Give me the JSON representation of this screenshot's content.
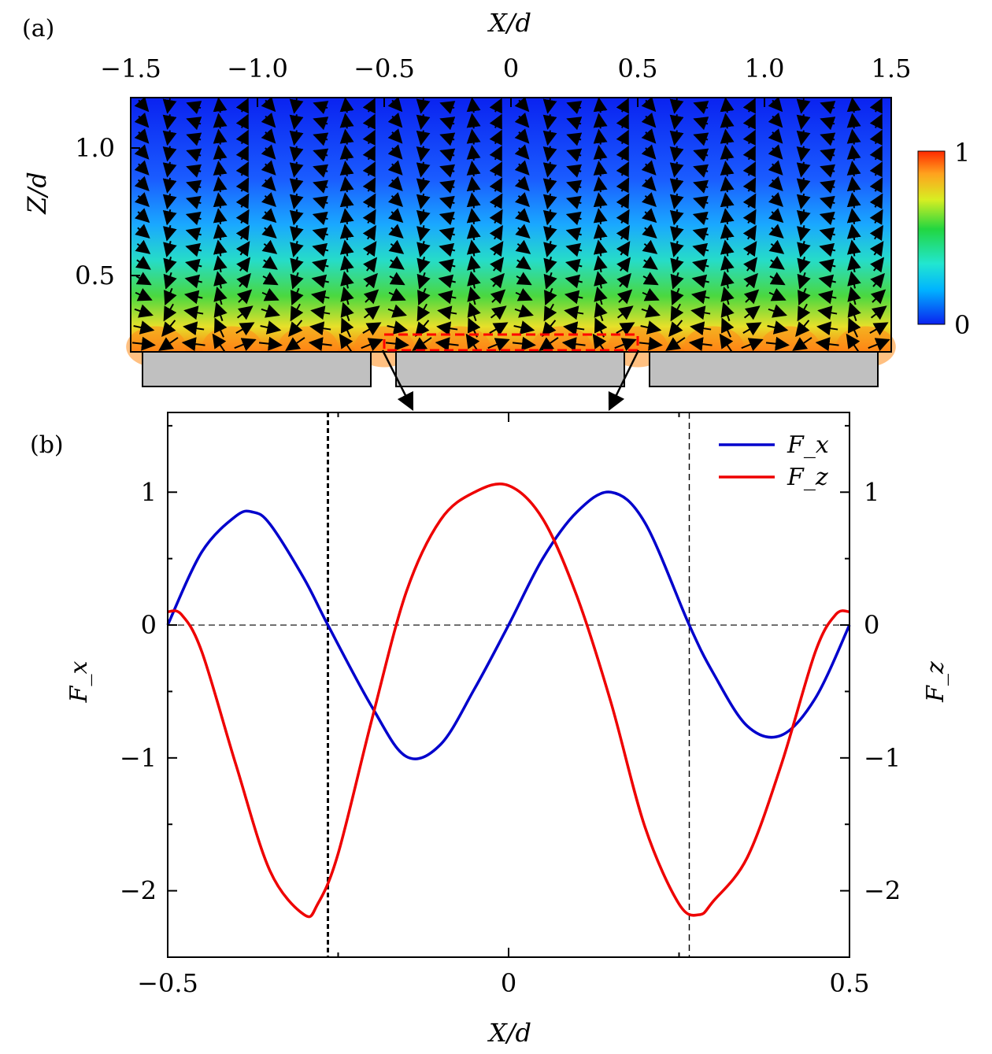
{
  "chart_data": [
    {
      "panel": "(a)",
      "type": "heatmap",
      "xlabel": "X/d",
      "ylabel": "Z/d",
      "xlim": [
        -1.5,
        1.5
      ],
      "ylim": [
        0.2,
        1.2
      ],
      "xticks": [
        "−1.5",
        "−1.0",
        "−0.5",
        "0",
        "0.5",
        "1.0",
        "1.5"
      ],
      "yticks": [
        "0.5",
        "1.0"
      ],
      "colorbar": {
        "min": "0",
        "max": "1",
        "colors": [
          "#0a22f0",
          "#00b4ff",
          "#22e6d0",
          "#22d640",
          "#d8ee22",
          "#ffa21e",
          "#ff2a00"
        ]
      },
      "slab_x_ranges": [
        [
          -1.45,
          -0.55
        ],
        [
          -0.45,
          0.45
        ],
        [
          0.55,
          1.45
        ]
      ],
      "zoom_box_x": [
        -0.5,
        0.5
      ],
      "note": "arrows show the in-plane flow direction; colour shows magnitude"
    },
    {
      "panel": "(b)",
      "type": "line",
      "xlabel": "X/d",
      "ylabel_left": "F_x",
      "ylabel_right": "F_z",
      "xlim": [
        -0.5,
        0.5
      ],
      "ylim": [
        -2.5,
        1.6
      ],
      "xticks": [
        "−0.5",
        "0",
        "0.5"
      ],
      "yticks_left": [
        "−2",
        "−1",
        "0",
        "1"
      ],
      "yticks_right": [
        "−2",
        "−1",
        "0",
        "1"
      ],
      "legend": "top-right",
      "vlines_x": [
        -0.265,
        0.265
      ],
      "hline_y": 0,
      "series": [
        {
          "name": "F_x",
          "color": "#0000cc",
          "x": [
            -0.5,
            -0.45,
            -0.4,
            -0.375,
            -0.35,
            -0.3,
            -0.265,
            -0.2,
            -0.15,
            -0.1,
            -0.05,
            0.0,
            0.05,
            0.1,
            0.15,
            0.2,
            0.265,
            0.3,
            0.35,
            0.4,
            0.45,
            0.5
          ],
          "y": [
            0.0,
            0.55,
            0.82,
            0.85,
            0.76,
            0.35,
            0.0,
            -0.62,
            -0.99,
            -0.9,
            -0.48,
            0.0,
            0.5,
            0.85,
            1.0,
            0.77,
            0.0,
            -0.36,
            -0.76,
            -0.83,
            -0.55,
            0.0
          ]
        },
        {
          "name": "F_z",
          "color": "#ee0000",
          "x": [
            -0.5,
            -0.48,
            -0.45,
            -0.4,
            -0.35,
            -0.3,
            -0.28,
            -0.25,
            -0.2,
            -0.15,
            -0.1,
            -0.05,
            0.0,
            0.05,
            0.1,
            0.15,
            0.2,
            0.25,
            0.28,
            0.3,
            0.35,
            0.4,
            0.45,
            0.48,
            0.5
          ],
          "y": [
            0.1,
            0.08,
            -0.2,
            -1.05,
            -1.85,
            -2.18,
            -2.1,
            -1.72,
            -0.7,
            0.25,
            0.79,
            1.0,
            1.05,
            0.8,
            0.22,
            -0.58,
            -1.52,
            -2.1,
            -2.18,
            -2.08,
            -1.75,
            -1.05,
            -0.2,
            0.08,
            0.1
          ]
        }
      ]
    }
  ]
}
